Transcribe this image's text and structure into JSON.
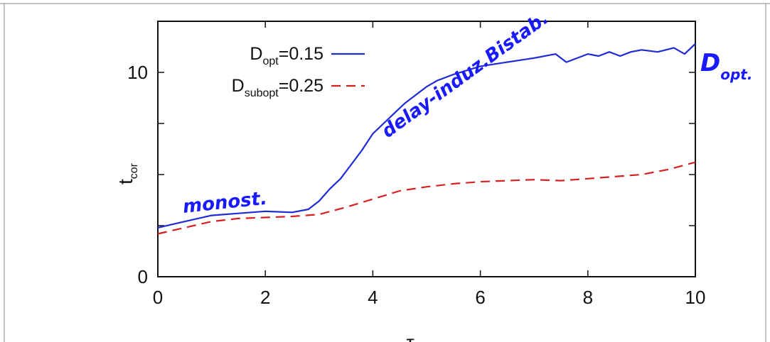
{
  "chart_data": {
    "type": "line",
    "title": "",
    "xlabel": "τ",
    "ylabel": {
      "main": "t",
      "sub": "cor"
    },
    "xlim": [
      0,
      10
    ],
    "ylim": [
      0,
      12.5
    ],
    "x_ticks": [
      "0",
      "2",
      "4",
      "6",
      "8",
      "10"
    ],
    "y_ticks": [
      "0",
      "10"
    ],
    "x_tick_values": [
      0,
      2,
      4,
      6,
      8,
      10
    ],
    "y_tick_values": [
      0,
      10
    ],
    "y_minor_ticks": [
      2.5,
      5,
      7.5
    ],
    "grid": false,
    "legend_position": "top-left",
    "series": [
      {
        "name_main": "D",
        "name_sub": "opt",
        "name_value": "=0.15",
        "color": "#1f2bd6",
        "dash": "solid",
        "x": [
          0,
          0.5,
          1,
          1.5,
          2,
          2.5,
          2.8,
          3.0,
          3.2,
          3.4,
          3.6,
          3.8,
          4.0,
          4.2,
          4.4,
          4.6,
          4.8,
          5.0,
          5.2,
          5.5,
          6.0,
          6.5,
          7.0,
          7.4,
          7.6,
          8.0,
          8.2,
          8.4,
          8.6,
          8.8,
          9.0,
          9.3,
          9.6,
          9.8,
          10.0
        ],
        "y": [
          2.4,
          2.7,
          3.0,
          3.1,
          3.2,
          3.15,
          3.3,
          3.7,
          4.3,
          4.8,
          5.5,
          6.2,
          7.0,
          7.5,
          8.0,
          8.5,
          8.9,
          9.3,
          9.6,
          9.9,
          10.3,
          10.5,
          10.7,
          10.9,
          10.5,
          10.9,
          10.8,
          11.0,
          10.8,
          11.0,
          11.1,
          11.0,
          11.2,
          10.9,
          11.4
        ]
      },
      {
        "name_main": "D",
        "name_sub": "subopt",
        "name_value": "=0.25",
        "color": "#d62020",
        "dash": "dashed",
        "x": [
          0,
          0.5,
          1,
          1.5,
          2,
          2.5,
          3.0,
          3.5,
          4.0,
          4.5,
          5.0,
          5.5,
          6.0,
          6.5,
          7.0,
          7.5,
          8.0,
          8.5,
          9.0,
          9.5,
          10.0
        ],
        "y": [
          2.1,
          2.4,
          2.7,
          2.85,
          2.9,
          2.95,
          3.05,
          3.4,
          3.8,
          4.2,
          4.4,
          4.55,
          4.65,
          4.7,
          4.75,
          4.7,
          4.8,
          4.9,
          5.0,
          5.25,
          5.6
        ]
      }
    ]
  },
  "annotations": [
    {
      "text": "monost."
    },
    {
      "text": "delay-induz.Bistab."
    },
    {
      "text": "D"
    },
    {
      "text": "opt."
    }
  ]
}
